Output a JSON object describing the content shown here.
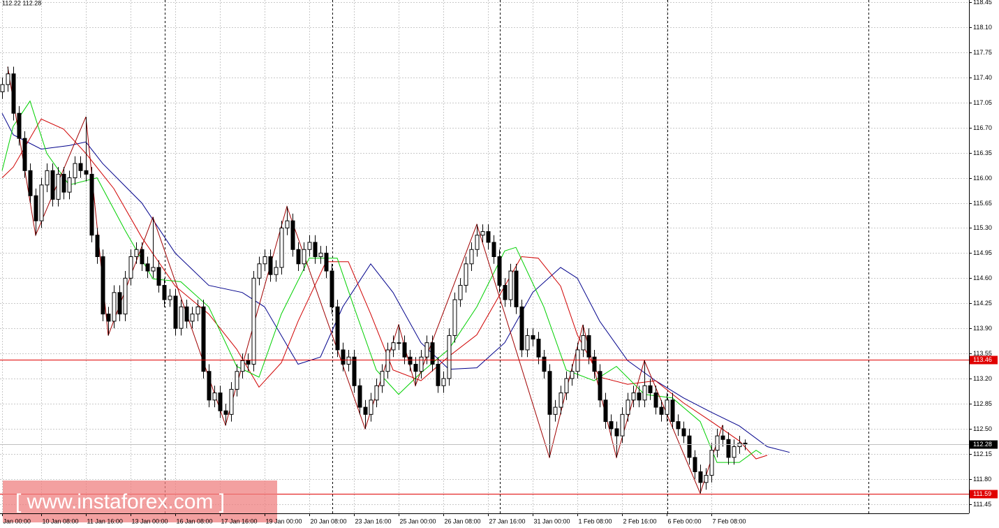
{
  "chart_data": {
    "type": "candlestick",
    "header": "112.22 112.28",
    "watermark": "[ www.instaforex.com ]",
    "xlim": [
      -0.375,
      173.125
    ],
    "ylim": [
      111.32,
      118.48
    ],
    "grid": true,
    "up_color": "#ffffff",
    "down_color": "#000000",
    "xticks": [
      {
        "value": 0,
        "label": "Jan 00:00"
      },
      {
        "value": 7,
        "label": "10 Jan 08:00"
      },
      {
        "value": 15,
        "label": "11 Jan 16:00"
      },
      {
        "value": 23,
        "label": "13 Jan 00:00"
      },
      {
        "value": 31,
        "label": "16 Jan 08:00"
      },
      {
        "value": 39,
        "label": "17 Jan 16:00"
      },
      {
        "value": 47,
        "label": "19 Jan 00:00"
      },
      {
        "value": 55,
        "label": "20 Jan 08:00"
      },
      {
        "value": 63,
        "label": "23 Jan 16:00"
      },
      {
        "value": 71,
        "label": "25 Jan 00:00"
      },
      {
        "value": 79,
        "label": "26 Jan 08:00"
      },
      {
        "value": 87,
        "label": "27 Jan 16:00"
      },
      {
        "value": 95,
        "label": "31 Jan 00:00"
      },
      {
        "value": 103,
        "label": "1 Feb 08:00"
      },
      {
        "value": 111,
        "label": "2 Feb 16:00"
      },
      {
        "value": 119,
        "label": "6 Feb 00:00"
      },
      {
        "value": 127,
        "label": "7 Feb 08:00"
      }
    ],
    "yticks": [
      118.45,
      {
        "value": 118.1,
        "label": "118.10"
      },
      117.75,
      {
        "value": 117.4,
        "label": "117.40"
      },
      117.05,
      {
        "value": 116.7,
        "label": "116.70"
      },
      116.35,
      {
        "value": 116,
        "label": "116.00"
      },
      115.65,
      {
        "value": 115.3,
        "label": "115.30"
      },
      114.95,
      {
        "value": 114.6,
        "label": "114.60"
      },
      114.25,
      {
        "value": 113.9,
        "label": "113.90"
      },
      113.55,
      {
        "value": 113.2,
        "label": "113.20"
      },
      112.85,
      {
        "value": 112.5,
        "label": "112.50"
      },
      112.15,
      {
        "value": 111.8,
        "label": "111.80"
      },
      111.45
    ],
    "levels": [
      {
        "value": 113.46,
        "color": "#e00000"
      },
      {
        "value": 112.28,
        "color": "#000000"
      },
      {
        "value": 111.59,
        "color": "#e00000"
      }
    ],
    "ohlc": [
      [
        117.2,
        117.4,
        117.1,
        117.3
      ],
      [
        117.3,
        117.55,
        117.2,
        117.45
      ],
      [
        117.45,
        117.55,
        116.8,
        116.9
      ],
      [
        116.9,
        117.0,
        116.45,
        116.55
      ],
      [
        116.55,
        116.65,
        116.0,
        116.1
      ],
      [
        116.1,
        116.2,
        115.65,
        115.75
      ],
      [
        115.75,
        115.85,
        115.2,
        115.4
      ],
      [
        115.4,
        116.0,
        115.3,
        115.9
      ],
      [
        115.9,
        116.2,
        115.8,
        116.1
      ],
      [
        116.1,
        116.2,
        115.6,
        115.7
      ],
      [
        115.7,
        116.15,
        115.6,
        116.05
      ],
      [
        116.05,
        116.15,
        115.7,
        115.8
      ],
      [
        115.8,
        116.1,
        115.7,
        116.0
      ],
      [
        116.0,
        116.3,
        115.9,
        116.2
      ],
      [
        116.2,
        116.3,
        116.0,
        116.1
      ],
      [
        116.1,
        116.85,
        115.95,
        116.05
      ],
      [
        116.05,
        116.15,
        115.1,
        115.2
      ],
      [
        115.2,
        115.3,
        114.8,
        114.9
      ],
      [
        114.9,
        115.0,
        114.0,
        114.1
      ],
      [
        114.1,
        114.2,
        113.8,
        114.0
      ],
      [
        114.0,
        114.5,
        113.9,
        114.4
      ],
      [
        114.4,
        114.5,
        114.0,
        114.1
      ],
      [
        114.1,
        114.7,
        114.0,
        114.6
      ],
      [
        114.6,
        115.0,
        114.5,
        114.9
      ],
      [
        114.9,
        115.1,
        114.8,
        115.0
      ],
      [
        115.0,
        115.1,
        114.7,
        114.8
      ],
      [
        114.8,
        114.9,
        114.6,
        114.7
      ],
      [
        114.7,
        115.45,
        114.6,
        114.75
      ],
      [
        114.75,
        114.85,
        114.4,
        114.5
      ],
      [
        114.5,
        114.6,
        114.2,
        114.3
      ],
      [
        114.3,
        114.45,
        114.2,
        114.35
      ],
      [
        114.35,
        114.45,
        113.8,
        113.9
      ],
      [
        113.9,
        114.3,
        113.8,
        114.2
      ],
      [
        114.2,
        114.3,
        113.9,
        114.0
      ],
      [
        114.0,
        114.2,
        113.9,
        114.1
      ],
      [
        114.1,
        114.3,
        114.0,
        114.2
      ],
      [
        114.2,
        114.3,
        113.2,
        113.3
      ],
      [
        113.3,
        113.4,
        112.8,
        112.9
      ],
      [
        112.9,
        113.1,
        112.8,
        113.0
      ],
      [
        113.0,
        113.1,
        112.65,
        112.75
      ],
      [
        112.75,
        112.85,
        112.55,
        112.7
      ],
      [
        112.7,
        113.15,
        112.6,
        113.05
      ],
      [
        113.05,
        113.4,
        112.95,
        113.3
      ],
      [
        113.3,
        113.55,
        113.2,
        113.45
      ],
      [
        113.45,
        113.55,
        113.3,
        113.4
      ],
      [
        113.4,
        114.7,
        113.3,
        114.6
      ],
      [
        114.6,
        114.9,
        114.5,
        114.8
      ],
      [
        114.8,
        115.0,
        114.7,
        114.9
      ],
      [
        114.9,
        115.0,
        114.55,
        114.65
      ],
      [
        114.65,
        114.85,
        114.55,
        114.75
      ],
      [
        114.75,
        115.4,
        114.65,
        115.3
      ],
      [
        115.3,
        115.6,
        115.2,
        115.4
      ],
      [
        115.4,
        115.5,
        114.9,
        115.0
      ],
      [
        115.0,
        115.1,
        114.7,
        114.8
      ],
      [
        114.8,
        115.1,
        114.7,
        115.0
      ],
      [
        115.0,
        115.2,
        114.9,
        115.1
      ],
      [
        115.1,
        115.2,
        114.8,
        114.9
      ],
      [
        114.9,
        115.05,
        114.8,
        114.95
      ],
      [
        114.95,
        115.05,
        114.6,
        114.7
      ],
      [
        114.7,
        114.8,
        114.1,
        114.2
      ],
      [
        114.2,
        114.3,
        113.5,
        113.6
      ],
      [
        113.6,
        113.7,
        113.3,
        113.4
      ],
      [
        113.4,
        113.6,
        113.3,
        113.5
      ],
      [
        113.5,
        113.6,
        113.0,
        113.1
      ],
      [
        113.1,
        113.2,
        112.7,
        112.8
      ],
      [
        112.8,
        112.9,
        112.5,
        112.7
      ],
      [
        112.7,
        113.0,
        112.6,
        112.9
      ],
      [
        112.9,
        113.2,
        112.8,
        113.1
      ],
      [
        113.1,
        113.4,
        113.0,
        113.3
      ],
      [
        113.3,
        113.7,
        113.2,
        113.6
      ],
      [
        113.6,
        113.8,
        113.5,
        113.7
      ],
      [
        113.7,
        113.95,
        113.6,
        113.7
      ],
      [
        113.7,
        113.8,
        113.4,
        113.5
      ],
      [
        113.5,
        113.6,
        113.3,
        113.4
      ],
      [
        113.4,
        113.5,
        113.1,
        113.3
      ],
      [
        113.3,
        113.6,
        113.2,
        113.5
      ],
      [
        113.5,
        113.8,
        113.4,
        113.7
      ],
      [
        113.7,
        113.8,
        113.3,
        113.4
      ],
      [
        113.4,
        113.5,
        113.0,
        113.1
      ],
      [
        113.1,
        113.3,
        113.0,
        113.2
      ],
      [
        113.2,
        113.9,
        113.1,
        113.8
      ],
      [
        113.8,
        114.4,
        113.7,
        114.3
      ],
      [
        114.3,
        114.6,
        114.2,
        114.5
      ],
      [
        114.5,
        114.9,
        114.4,
        114.8
      ],
      [
        114.8,
        115.1,
        114.7,
        115.0
      ],
      [
        115.0,
        115.35,
        114.9,
        115.2
      ],
      [
        115.2,
        115.35,
        115.1,
        115.25
      ],
      [
        115.25,
        115.35,
        115.0,
        115.1
      ],
      [
        115.1,
        115.2,
        114.8,
        114.9
      ],
      [
        114.9,
        115.0,
        114.4,
        114.5
      ],
      [
        114.5,
        114.6,
        114.2,
        114.3
      ],
      [
        114.3,
        114.8,
        114.2,
        114.7
      ],
      [
        114.7,
        114.8,
        114.1,
        114.2
      ],
      [
        114.2,
        114.3,
        113.5,
        113.6
      ],
      [
        113.6,
        113.9,
        113.5,
        113.8
      ],
      [
        113.8,
        113.9,
        113.65,
        113.75
      ],
      [
        113.75,
        113.85,
        113.4,
        113.5
      ],
      [
        113.5,
        113.6,
        113.2,
        113.3
      ],
      [
        113.3,
        113.4,
        112.1,
        112.7
      ],
      [
        112.7,
        112.9,
        112.6,
        112.8
      ],
      [
        112.8,
        113.1,
        112.7,
        113.0
      ],
      [
        113.0,
        113.3,
        112.9,
        113.2
      ],
      [
        113.2,
        113.4,
        113.1,
        113.3
      ],
      [
        113.3,
        113.7,
        113.2,
        113.6
      ],
      [
        113.6,
        113.95,
        113.5,
        113.8
      ],
      [
        113.8,
        113.9,
        113.4,
        113.5
      ],
      [
        113.5,
        113.6,
        113.2,
        113.3
      ],
      [
        113.3,
        113.4,
        112.8,
        112.9
      ],
      [
        112.9,
        113.0,
        112.5,
        112.6
      ],
      [
        112.6,
        112.7,
        112.4,
        112.5
      ],
      [
        112.5,
        112.6,
        112.1,
        112.4
      ],
      [
        112.4,
        112.8,
        112.3,
        112.7
      ],
      [
        112.7,
        113.0,
        112.6,
        112.9
      ],
      [
        112.9,
        113.1,
        112.8,
        113.0
      ],
      [
        113.0,
        113.1,
        112.8,
        112.9
      ],
      [
        112.9,
        113.45,
        112.8,
        113.1
      ],
      [
        113.1,
        113.2,
        112.9,
        113.0
      ],
      [
        113.0,
        113.1,
        112.7,
        112.8
      ],
      [
        112.8,
        112.9,
        112.6,
        112.7
      ],
      [
        112.7,
        113.0,
        112.6,
        112.9
      ],
      [
        112.9,
        113.0,
        112.5,
        112.6
      ],
      [
        112.6,
        112.7,
        112.4,
        112.5
      ],
      [
        112.5,
        112.6,
        112.3,
        112.4
      ],
      [
        112.4,
        112.5,
        112.0,
        112.1
      ],
      [
        112.1,
        112.2,
        111.8,
        111.9
      ],
      [
        111.9,
        112.0,
        111.6,
        111.75
      ],
      [
        111.75,
        111.95,
        111.65,
        111.85
      ],
      [
        111.85,
        112.3,
        111.75,
        112.2
      ],
      [
        112.2,
        112.5,
        112.1,
        112.4
      ],
      [
        112.4,
        112.55,
        112.25,
        112.35
      ],
      [
        112.35,
        112.45,
        112.0,
        112.1
      ],
      [
        112.1,
        112.35,
        112.0,
        112.25
      ],
      [
        112.25,
        112.4,
        112.15,
        112.3
      ],
      [
        112.3,
        112.35,
        112.2,
        112.28
      ]
    ],
    "series": [
      {
        "color": "#00008b",
        "x": [
          0,
          2,
          7,
          12,
          15,
          18,
          25,
          31,
          37,
          43,
          47,
          53,
          57,
          61,
          66,
          70,
          75,
          80,
          85,
          90,
          95,
          100,
          103,
          107,
          112,
          117,
          122,
          127,
          132,
          137,
          141
        ],
        "values": [
          116.9,
          116.6,
          116.4,
          116.45,
          116.5,
          116.2,
          115.65,
          114.95,
          114.5,
          114.4,
          114.2,
          113.4,
          113.5,
          114.2,
          114.8,
          114.4,
          113.7,
          113.33,
          113.35,
          113.7,
          114.4,
          114.75,
          114.6,
          114.0,
          113.45,
          113.17,
          112.93,
          112.73,
          112.54,
          112.25,
          112.17
        ]
      },
      {
        "color": "#d00000",
        "x": [
          0,
          2,
          7,
          11,
          15,
          20,
          25,
          31,
          37,
          42,
          46,
          50,
          53,
          58,
          62,
          66,
          70,
          75,
          80,
          85,
          90,
          93,
          96,
          100,
          103,
          107,
          112,
          117,
          122,
          127,
          132,
          135,
          137
        ],
        "values": [
          116.0,
          116.15,
          116.82,
          116.68,
          116.34,
          115.85,
          115.17,
          114.49,
          114.1,
          113.61,
          113.08,
          113.42,
          114.0,
          114.83,
          114.83,
          114.1,
          113.32,
          113.17,
          113.51,
          113.81,
          114.49,
          114.9,
          114.88,
          114.49,
          113.81,
          113.22,
          113.12,
          113.17,
          112.86,
          112.6,
          112.33,
          112.08,
          112.13
        ]
      },
      {
        "color": "#00d000",
        "x": [
          0,
          2,
          5,
          8,
          12,
          17,
          22,
          27,
          32,
          37,
          42,
          46,
          50,
          55,
          60,
          63,
          67,
          71,
          75,
          80,
          85,
          90,
          92,
          97,
          101,
          106,
          110,
          115,
          120,
          125,
          128,
          132,
          135,
          136
        ],
        "values": [
          116.1,
          116.72,
          117.07,
          116.34,
          115.9,
          116.0,
          115.27,
          114.59,
          114.55,
          114.2,
          113.37,
          113.22,
          114.1,
          114.88,
          114.88,
          114.2,
          113.32,
          112.98,
          113.28,
          113.61,
          114.2,
          114.98,
          115.03,
          114.2,
          113.32,
          113.17,
          113.37,
          112.98,
          112.93,
          112.6,
          112.03,
          112.03,
          112.2,
          112.15
        ]
      },
      {
        "color": "#a00000",
        "x": [
          1,
          6,
          15,
          19,
          27,
          40,
          51,
          65,
          71,
          74,
          85,
          98,
          104,
          110,
          115,
          125,
          129
        ],
        "values": [
          117.55,
          115.2,
          116.85,
          113.8,
          115.45,
          112.55,
          115.6,
          112.5,
          113.95,
          113.1,
          115.35,
          112.1,
          113.95,
          112.1,
          113.45,
          111.6,
          112.55
        ]
      }
    ]
  }
}
